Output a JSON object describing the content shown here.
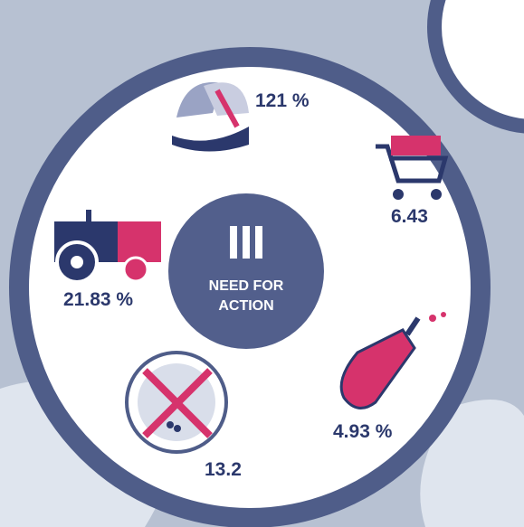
{
  "center": {
    "label": "NEED FOR ACTION"
  },
  "items": [
    {
      "label": "121 %"
    },
    {
      "label": "6.43"
    },
    {
      "label": "21.83 %"
    },
    {
      "label": "13.2"
    },
    {
      "label": "4.93 %"
    }
  ]
}
